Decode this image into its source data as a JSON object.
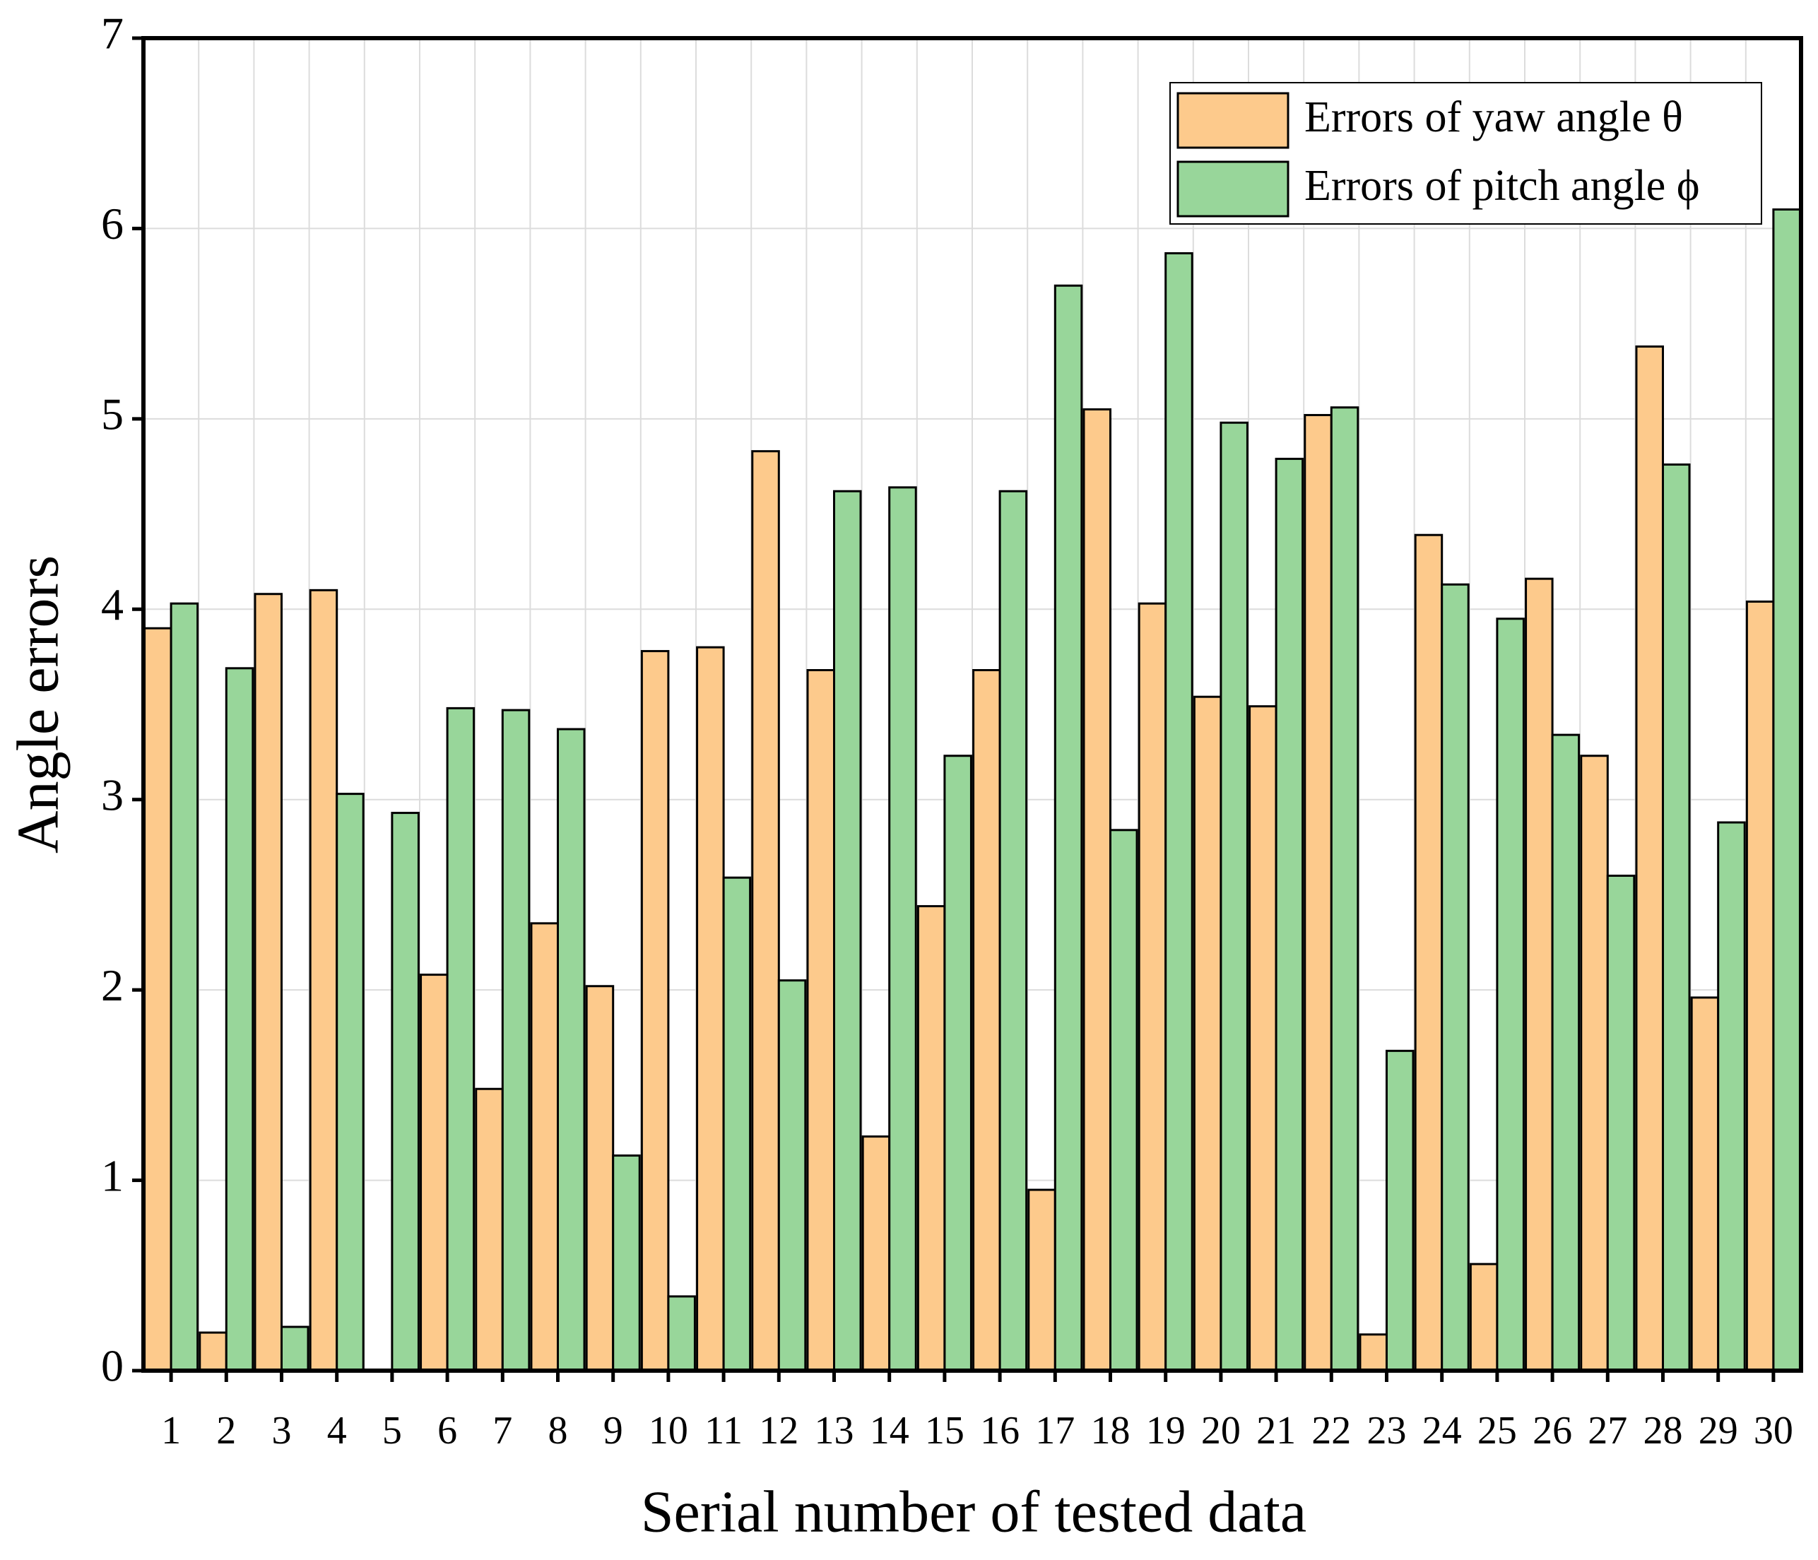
{
  "chart_data": {
    "type": "bar",
    "x_label": "Serial number of tested data",
    "y_label": "Angle errors",
    "categories": [
      "1",
      "2",
      "3",
      "4",
      "5",
      "6",
      "7",
      "8",
      "9",
      "10",
      "11",
      "12",
      "13",
      "14",
      "15",
      "16",
      "17",
      "18",
      "19",
      "20",
      "21",
      "22",
      "23",
      "24",
      "25",
      "26",
      "27",
      "28",
      "29",
      "30"
    ],
    "series": [
      {
        "name": "Errors of yaw angle θ",
        "color": "#fdca8c",
        "values": [
          3.9,
          0.2,
          4.08,
          4.1,
          0,
          2.08,
          1.48,
          2.35,
          2.02,
          3.78,
          3.8,
          4.83,
          3.68,
          1.23,
          2.44,
          3.68,
          0.95,
          5.05,
          4.03,
          3.54,
          3.49,
          5.02,
          0.19,
          4.39,
          0.56,
          4.16,
          3.23,
          5.38,
          1.96,
          4.04
        ]
      },
      {
        "name": "Errors of pitch angle ϕ",
        "color": "#98d69a",
        "values": [
          4.03,
          3.69,
          0.23,
          3.03,
          2.93,
          3.48,
          3.47,
          3.37,
          1.13,
          0.39,
          2.59,
          2.05,
          4.62,
          4.64,
          3.23,
          4.62,
          5.7,
          2.84,
          5.87,
          4.98,
          4.79,
          5.06,
          1.68,
          4.13,
          3.95,
          3.34,
          2.6,
          4.76,
          2.88,
          6.1
        ]
      }
    ],
    "ylim": [
      0,
      7
    ],
    "yticks": [
      0,
      1,
      2,
      3,
      4,
      5,
      6,
      7
    ],
    "grid": true,
    "legend": "upper right"
  }
}
